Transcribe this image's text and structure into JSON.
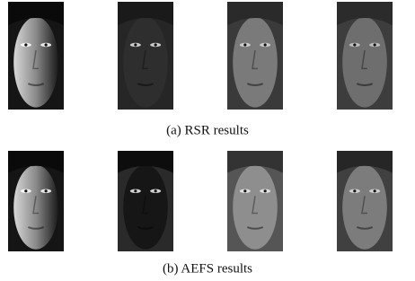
{
  "figure": {
    "rows": [
      {
        "caption": "(a) RSR results"
      },
      {
        "caption": "(b) AEFS results"
      }
    ]
  }
}
